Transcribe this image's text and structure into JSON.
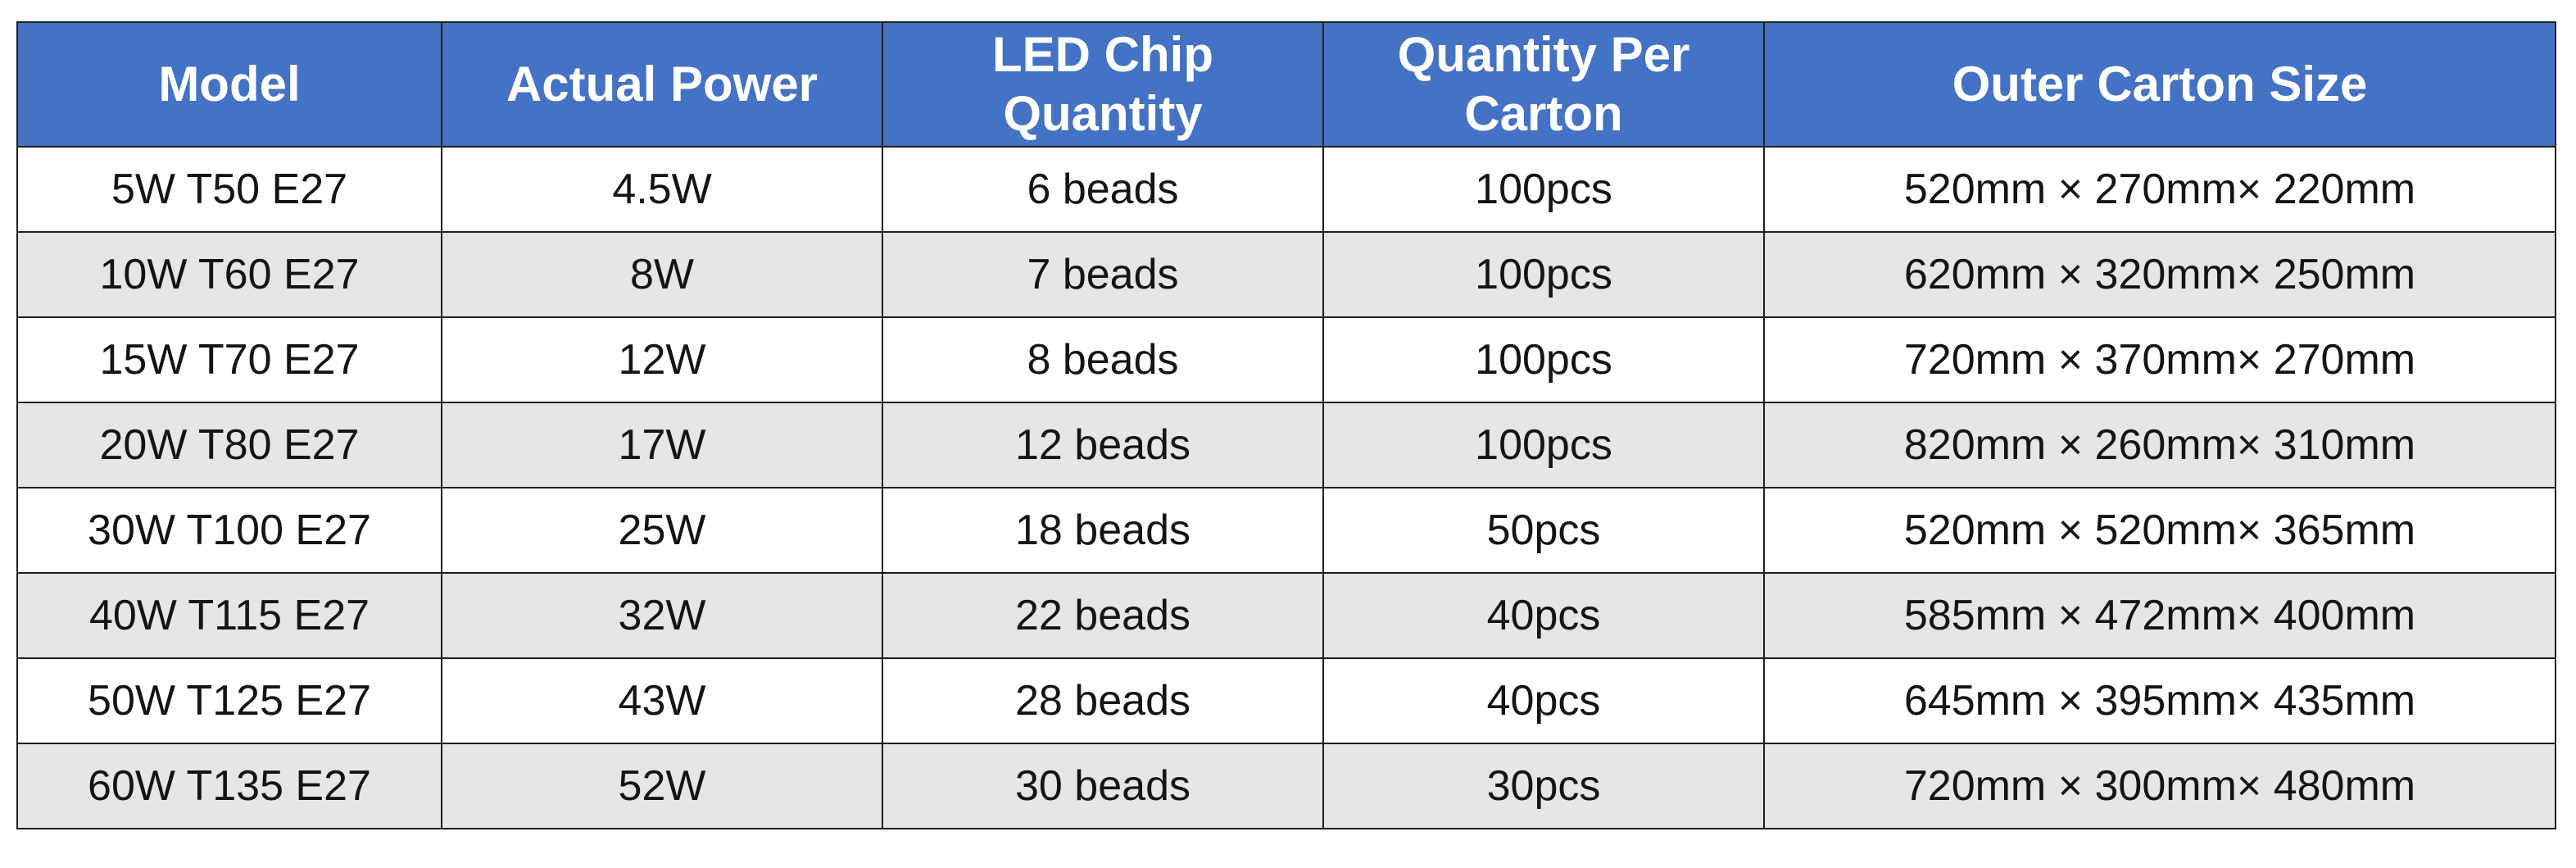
{
  "table": {
    "headers": {
      "model": "Model",
      "actual_power": "Actual Power",
      "led_chip_quantity": [
        "LED Chip",
        "Quantity"
      ],
      "quantity_per_carton": [
        "Quantity Per",
        "Carton"
      ],
      "outer_carton_size": "Outer Carton Size"
    },
    "rows": [
      {
        "model": "5W T50 E27",
        "actual_power": "4.5W",
        "led_chip_quantity": "6 beads",
        "quantity_per_carton": "100pcs",
        "outer_carton_size": "520mm × 270mm× 220mm"
      },
      {
        "model": "10W T60 E27",
        "actual_power": "8W",
        "led_chip_quantity": "7 beads",
        "quantity_per_carton": "100pcs",
        "outer_carton_size": "620mm × 320mm× 250mm"
      },
      {
        "model": "15W T70 E27",
        "actual_power": "12W",
        "led_chip_quantity": "8 beads",
        "quantity_per_carton": "100pcs",
        "outer_carton_size": "720mm × 370mm× 270mm"
      },
      {
        "model": "20W T80 E27",
        "actual_power": "17W",
        "led_chip_quantity": "12 beads",
        "quantity_per_carton": "100pcs",
        "outer_carton_size": "820mm × 260mm× 310mm"
      },
      {
        "model": "30W T100 E27",
        "actual_power": "25W",
        "led_chip_quantity": "18 beads",
        "quantity_per_carton": "50pcs",
        "outer_carton_size": "520mm × 520mm× 365mm"
      },
      {
        "model": "40W T115 E27",
        "actual_power": "32W",
        "led_chip_quantity": "22 beads",
        "quantity_per_carton": "40pcs",
        "outer_carton_size": "585mm × 472mm× 400mm"
      },
      {
        "model": "50W T125 E27",
        "actual_power": "43W",
        "led_chip_quantity": "28 beads",
        "quantity_per_carton": "40pcs",
        "outer_carton_size": "645mm × 395mm× 435mm"
      },
      {
        "model": "60W T135 E27",
        "actual_power": "52W",
        "led_chip_quantity": "30 beads",
        "quantity_per_carton": "30pcs",
        "outer_carton_size": "720mm × 300mm× 480mm"
      }
    ]
  },
  "colors": {
    "header_background": "#4472c4",
    "header_text": "#ffffff",
    "row_odd": "#ffffff",
    "row_even": "#e6e6e6",
    "border": "#1f1f1f"
  }
}
